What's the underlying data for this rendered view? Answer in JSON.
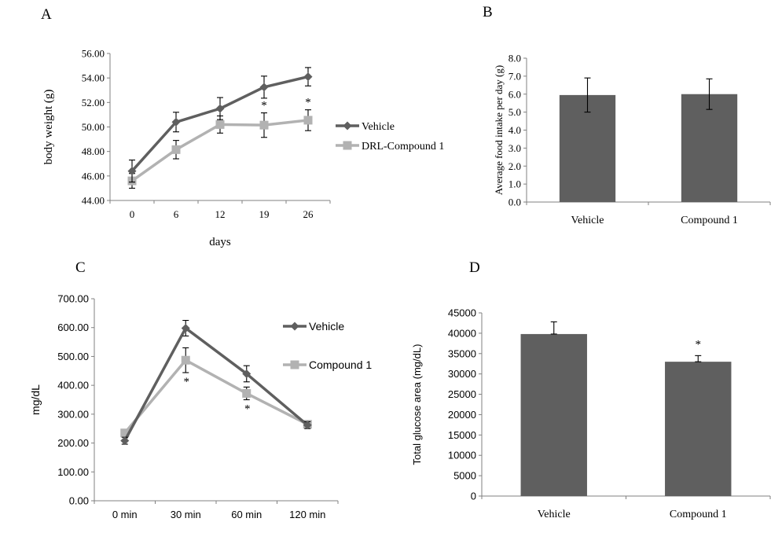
{
  "panels": {
    "A": {
      "letter": "A"
    },
    "B": {
      "letter": "B"
    },
    "C": {
      "letter": "C"
    },
    "D": {
      "letter": "D"
    }
  },
  "colors": {
    "dark": "#5f5f5f",
    "light": "#b2b2b2",
    "bar": "#5f5f5f",
    "axis": "#808080",
    "text": "#000000"
  },
  "chart_data": [
    {
      "id": "A",
      "type": "line",
      "x": [
        "0",
        "6",
        "12",
        "19",
        "26"
      ],
      "xlabel": "days",
      "ylabel": "body weight (g)",
      "ylim": [
        44,
        56
      ],
      "yticks": [
        "44.00",
        "46.00",
        "48.00",
        "50.00",
        "52.00",
        "54.00",
        "56.00"
      ],
      "grid": false,
      "legend": "right",
      "series": [
        {
          "name": "Vehicle",
          "values": [
            46.4,
            50.4,
            51.5,
            53.25,
            54.1
          ],
          "errors": [
            0.9,
            0.8,
            0.9,
            0.9,
            0.75
          ],
          "marker": "diamond"
        },
        {
          "name": "DRL-Compound 1",
          "values": [
            45.6,
            48.15,
            50.2,
            50.15,
            50.55
          ],
          "errors": [
            0.6,
            0.75,
            0.7,
            1.0,
            0.85
          ],
          "marker": "square"
        }
      ],
      "annotations": [
        {
          "text": "*",
          "x_index": 3
        },
        {
          "text": "*",
          "x_index": 4
        }
      ]
    },
    {
      "id": "B",
      "type": "bar",
      "categories": [
        "Vehicle",
        "Compound 1"
      ],
      "values": [
        5.95,
        6.0
      ],
      "errors": [
        0.95,
        0.85
      ],
      "ylabel": "Average food intake per day (g)",
      "ylim": [
        0,
        8
      ],
      "yticks": [
        "0.0",
        "1.0",
        "2.0",
        "3.0",
        "4.0",
        "5.0",
        "6.0",
        "7.0",
        "8.0"
      ],
      "grid": false
    },
    {
      "id": "C",
      "type": "line",
      "x": [
        "0 min",
        "30 min",
        "60 min",
        "120 min"
      ],
      "ylabel": "mg/dL",
      "ylim": [
        0,
        700
      ],
      "yticks": [
        "0.00",
        "100.00",
        "200.00",
        "300.00",
        "400.00",
        "500.00",
        "600.00",
        "700.00"
      ],
      "grid": false,
      "legend": "right",
      "series": [
        {
          "name": "Vehicle",
          "values": [
            208,
            598,
            440,
            262
          ],
          "errors": [
            12,
            27,
            28,
            12
          ],
          "marker": "diamond"
        },
        {
          "name": "Compound 1",
          "values": [
            235,
            487,
            372,
            265
          ],
          "errors": [
            10,
            43,
            22,
            10
          ],
          "marker": "square"
        }
      ],
      "annotations": [
        {
          "text": "*",
          "x_index": 1
        },
        {
          "text": "*",
          "x_index": 2
        }
      ]
    },
    {
      "id": "D",
      "type": "bar",
      "categories": [
        "Vehicle",
        "Compound 1"
      ],
      "values": [
        39800,
        33000
      ],
      "errors": [
        3000,
        1500
      ],
      "ylabel": "Total glucose area (mg/dL)",
      "ylim": [
        0,
        45000
      ],
      "yticks": [
        "0",
        "5000",
        "10000",
        "15000",
        "20000",
        "25000",
        "30000",
        "35000",
        "40000",
        "45000"
      ],
      "grid": false,
      "annotations": [
        {
          "text": "*",
          "category_index": 1
        }
      ]
    }
  ]
}
